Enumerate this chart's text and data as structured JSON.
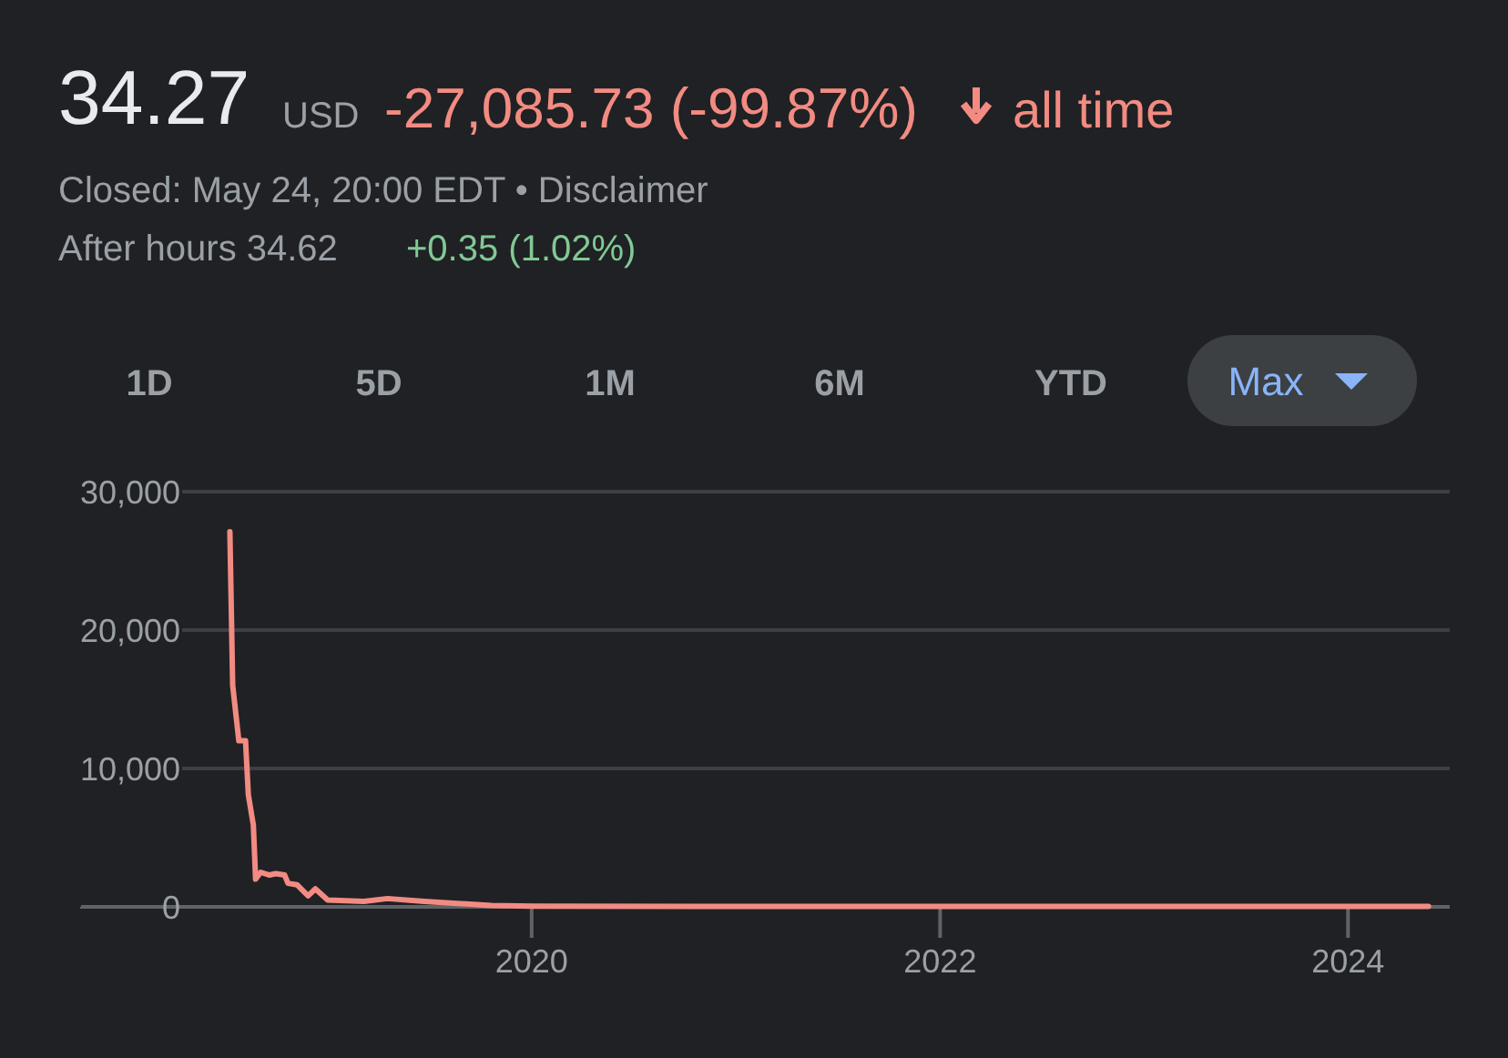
{
  "chart_data": {
    "type": "line",
    "title": "34.27",
    "annotations": [
      "USD",
      "-27,085.73 (-99.87%)",
      "all time",
      "Closed: May 24, 20:00 EDT • Disclaimer",
      "After hours 34.62",
      "+0.35 (1.02%)",
      "1D",
      "5D",
      "1M",
      "6M",
      "YTD",
      "Max"
    ],
    "x": [
      "2018-07-10",
      "2018-07-15",
      "2018-07-26",
      "2018-08-07",
      "2018-08-12",
      "2018-08-21",
      "2018-08-25",
      "2018-09-03",
      "2018-09-19",
      "2018-09-30",
      "2018-10-16",
      "2018-10-22",
      "2018-11-07",
      "2018-11-27",
      "2018-12-10",
      "2019-01-01",
      "2019-03-07",
      "2019-04-18",
      "2019-06-23",
      "2019-10-21",
      "2020-01-04",
      "2021-06-01",
      "2023-01-01",
      "2024-05-24"
    ],
    "series": [
      {
        "color": "#f28b82",
        "values": [
          27100,
          16000,
          12000,
          12000,
          8100,
          5900,
          2000,
          2500,
          2300,
          2400,
          2300,
          1700,
          1600,
          800,
          1300,
          500,
          400,
          600,
          400,
          100,
          50,
          30,
          30,
          34.27
        ]
      }
    ],
    "xlim": [
      "2017-10-15",
      "2024-07-01"
    ],
    "xticks": [
      "2020",
      "2022",
      "2024"
    ],
    "ylim": [
      0,
      30000
    ],
    "yticks": [
      {
        "value": 0,
        "label": "0"
      },
      {
        "value": 10000,
        "label": "10,000"
      },
      {
        "value": 20000,
        "label": "20,000"
      },
      {
        "value": 30000,
        "label": "30,000"
      }
    ],
    "grid": "y",
    "marker": "none",
    "line_style": "solid"
  }
}
